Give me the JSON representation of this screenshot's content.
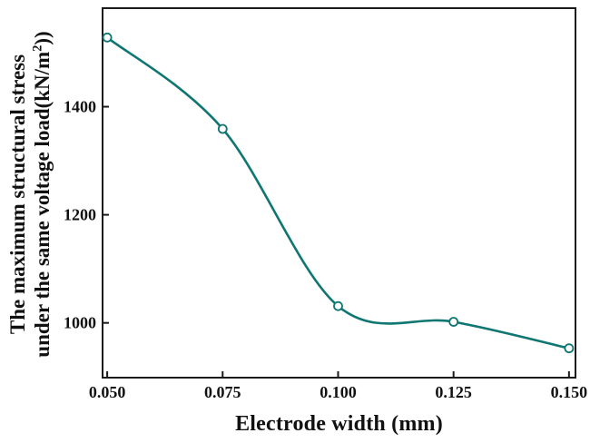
{
  "figure": {
    "background": "#ffffff"
  },
  "chart_data": {
    "type": "line",
    "title": "",
    "xlabel": "Electrode width (mm)",
    "ylabel_line1": "The maximum structural stress",
    "ylabel_line2_pre": "under the same voltage load(kN/m",
    "ylabel_superscript": "2",
    "ylabel_line2_post": "))",
    "x": [
      0.05,
      0.075,
      0.1,
      0.125,
      0.15
    ],
    "y": [
      1528,
      1359,
      1031,
      1002,
      953
    ],
    "x_tick_labels": [
      "0.050",
      "0.075",
      "0.100",
      "0.125",
      "0.150"
    ],
    "y_tick_values": [
      1000,
      1200,
      1400
    ],
    "y_tick_labels": [
      "1000",
      "1200",
      "1400"
    ],
    "xlim": [
      0.0488,
      0.1516
    ],
    "ylim": [
      897,
      1584
    ],
    "grid": false,
    "legend": null,
    "line_color": "#0f7672",
    "marker": "open-circle",
    "marker_fill": "#ffffff",
    "axis_color": "#1a1a1a",
    "text_color": "#111111"
  }
}
